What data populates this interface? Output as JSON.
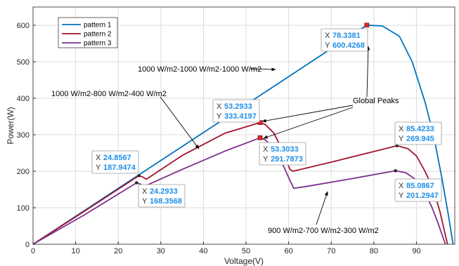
{
  "chart_data": {
    "type": "line",
    "xlabel": "Voltage(V)",
    "ylabel": "Power(W)",
    "xlim": [
      0,
      99
    ],
    "ylim": [
      0,
      650
    ],
    "xticks": [
      0,
      10,
      20,
      30,
      40,
      50,
      60,
      70,
      80,
      90
    ],
    "yticks": [
      0,
      100,
      200,
      300,
      400,
      500,
      600
    ],
    "grid": true,
    "legend_position": "top-left",
    "series": [
      {
        "name": "pattern 1",
        "color": "#0072bd",
        "points": [
          [
            0,
            0
          ],
          [
            20,
            153
          ],
          [
            40,
            306
          ],
          [
            60,
            459
          ],
          [
            78.3381,
            600.4268
          ],
          [
            82,
            598
          ],
          [
            86,
            570
          ],
          [
            89,
            500
          ],
          [
            92,
            390
          ],
          [
            94,
            300
          ],
          [
            96,
            180
          ],
          [
            97.5,
            80
          ],
          [
            98.6,
            0
          ]
        ]
      },
      {
        "name": "pattern 2",
        "color": "#a2142f",
        "points": [
          [
            0,
            0
          ],
          [
            12,
            90
          ],
          [
            24.8567,
            187.9474
          ],
          [
            25.8,
            184
          ],
          [
            26.6,
            178
          ],
          [
            35,
            243
          ],
          [
            45,
            304
          ],
          [
            53.2933,
            333.4197
          ],
          [
            54.5,
            328
          ],
          [
            56.5,
            305
          ],
          [
            58.5,
            260
          ],
          [
            60.3,
            205
          ],
          [
            61,
            200
          ],
          [
            70,
            225
          ],
          [
            80,
            254
          ],
          [
            85.4233,
            269.945
          ],
          [
            88,
            262
          ],
          [
            90,
            242
          ],
          [
            92,
            200
          ],
          [
            94,
            150
          ],
          [
            95.5,
            90
          ],
          [
            96.5,
            40
          ],
          [
            97.3,
            0
          ]
        ]
      },
      {
        "name": "pattern 3",
        "color": "#7e2f8e",
        "points": [
          [
            0,
            0
          ],
          [
            12,
            80
          ],
          [
            24.2933,
            168.3568
          ],
          [
            25.2,
            165
          ],
          [
            26,
            158
          ],
          [
            35,
            205
          ],
          [
            45,
            255
          ],
          [
            53.3033,
            291.7873
          ],
          [
            54.5,
            286
          ],
          [
            56.5,
            263
          ],
          [
            58.5,
            222
          ],
          [
            60.3,
            175
          ],
          [
            61.2,
            153
          ],
          [
            65,
            160
          ],
          [
            75,
            180
          ],
          [
            85.0867,
            201.2947
          ],
          [
            87.5,
            196
          ],
          [
            89.5,
            180
          ],
          [
            91.5,
            150
          ],
          [
            93.5,
            105
          ],
          [
            95,
            60
          ],
          [
            96.2,
            20
          ],
          [
            96.8,
            0
          ]
        ]
      }
    ],
    "datatips": [
      {
        "x": 78.3381,
        "y": 600.4268,
        "xl": "78.3381",
        "yl": "600.4268",
        "marker": "square"
      },
      {
        "x": 53.2933,
        "y": 333.4197,
        "xl": "53.2933",
        "yl": "333.4197",
        "marker": "square"
      },
      {
        "x": 53.3033,
        "y": 291.7873,
        "xl": "53.3033",
        "yl": "291.7873",
        "marker": "square"
      },
      {
        "x": 24.8567,
        "y": 187.9474,
        "xl": "24.8567",
        "yl": "187.9474",
        "marker": "dot"
      },
      {
        "x": 24.2933,
        "y": 168.3568,
        "xl": "24.2933",
        "yl": "168.3568",
        "marker": "dot"
      },
      {
        "x": 85.4233,
        "y": 269.945,
        "xl": "85.4233",
        "yl": "269.945",
        "marker": "dot"
      },
      {
        "x": 85.0867,
        "y": 201.2947,
        "xl": "85.0867",
        "yl": "201.2947",
        "marker": "dot"
      }
    ],
    "annotations": [
      {
        "text": "1000 W/m2-1000 W/m2-1000 W/m2",
        "target": "pattern 1"
      },
      {
        "text": "1000 W/m2-800 W/m2-400 W/m2",
        "target": "pattern 2"
      },
      {
        "text": "Global Peaks",
        "target": "global maxima"
      },
      {
        "text": "900 W/m2-700 W/m2-300 W/m2",
        "target": "pattern 3"
      }
    ]
  }
}
